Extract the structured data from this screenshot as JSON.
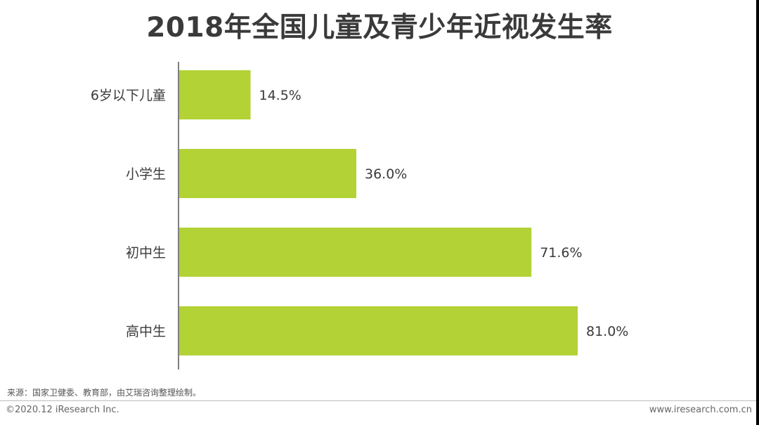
{
  "title": "2018年全国儿童及青少年近视发生率",
  "source_note": "来源：国家卫健委、教育部，由艾瑞咨询整理绘制。",
  "footer": {
    "copyright": "©2020.12 iResearch Inc.",
    "website": "www.iresearch.com.cn"
  },
  "colors": {
    "bar": "#b2d235",
    "text": "#3a3a3a",
    "axis": "#555555"
  },
  "chart_data": {
    "type": "bar",
    "orientation": "horizontal",
    "title": "2018年全国儿童及青少年近视发生率",
    "categories": [
      "6岁以下儿童",
      "小学生",
      "初中生",
      "高中生"
    ],
    "values": [
      14.5,
      36.0,
      71.6,
      81.0
    ],
    "value_labels": [
      "14.5%",
      "36.0%",
      "71.6%",
      "81.0%"
    ],
    "unit": "%",
    "xlim": [
      0,
      100
    ],
    "grid": false,
    "legend": "none"
  }
}
